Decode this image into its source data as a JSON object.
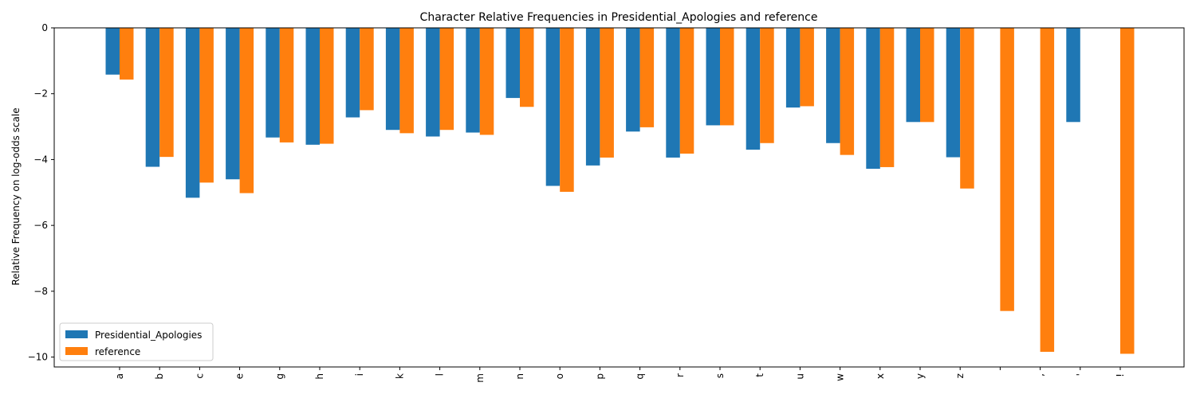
{
  "chart_data": {
    "type": "bar",
    "title": "Character Relative Frequencies in Presidential_Apologies and reference",
    "xlabel": "",
    "ylabel": "Relative Frequency on log-odds scale",
    "ylim": [
      -10.3,
      0
    ],
    "yticks": [
      0,
      -2,
      -4,
      -6,
      -8,
      -10
    ],
    "yticklabels": [
      "0",
      "−2",
      "−4",
      "−6",
      "−8",
      "−10"
    ],
    "categories": [
      "a",
      "b",
      "c",
      "e",
      "g",
      "h",
      "i",
      "k",
      "l",
      "m",
      "n",
      "o",
      "p",
      "q",
      "r",
      "s",
      "t",
      "u",
      "w",
      "x",
      "y",
      "z",
      " ",
      ",",
      "'",
      "!"
    ],
    "series": [
      {
        "name": "Presidential_Apologies",
        "color": "#1f77b4",
        "values": [
          -1.42,
          -4.22,
          -5.16,
          -4.6,
          -3.33,
          -3.55,
          -2.72,
          -3.1,
          -3.3,
          -3.18,
          -2.13,
          -4.8,
          -4.18,
          -3.15,
          -3.94,
          -2.96,
          -3.7,
          -2.42,
          -3.5,
          -4.28,
          -2.86,
          -3.93,
          null,
          null,
          -2.86,
          null
        ]
      },
      {
        "name": "reference",
        "color": "#ff7f0e",
        "values": [
          -1.57,
          -3.92,
          -4.7,
          -5.02,
          -3.48,
          -3.52,
          -2.5,
          -3.2,
          -3.1,
          -3.25,
          -2.4,
          -4.98,
          -3.94,
          -3.02,
          -3.82,
          -2.96,
          -3.5,
          -2.38,
          -3.86,
          -4.23,
          -2.86,
          -4.88,
          -8.6,
          -9.84,
          null,
          -9.9
        ]
      }
    ],
    "legend": {
      "position": "lower-left"
    },
    "grid": false
  }
}
